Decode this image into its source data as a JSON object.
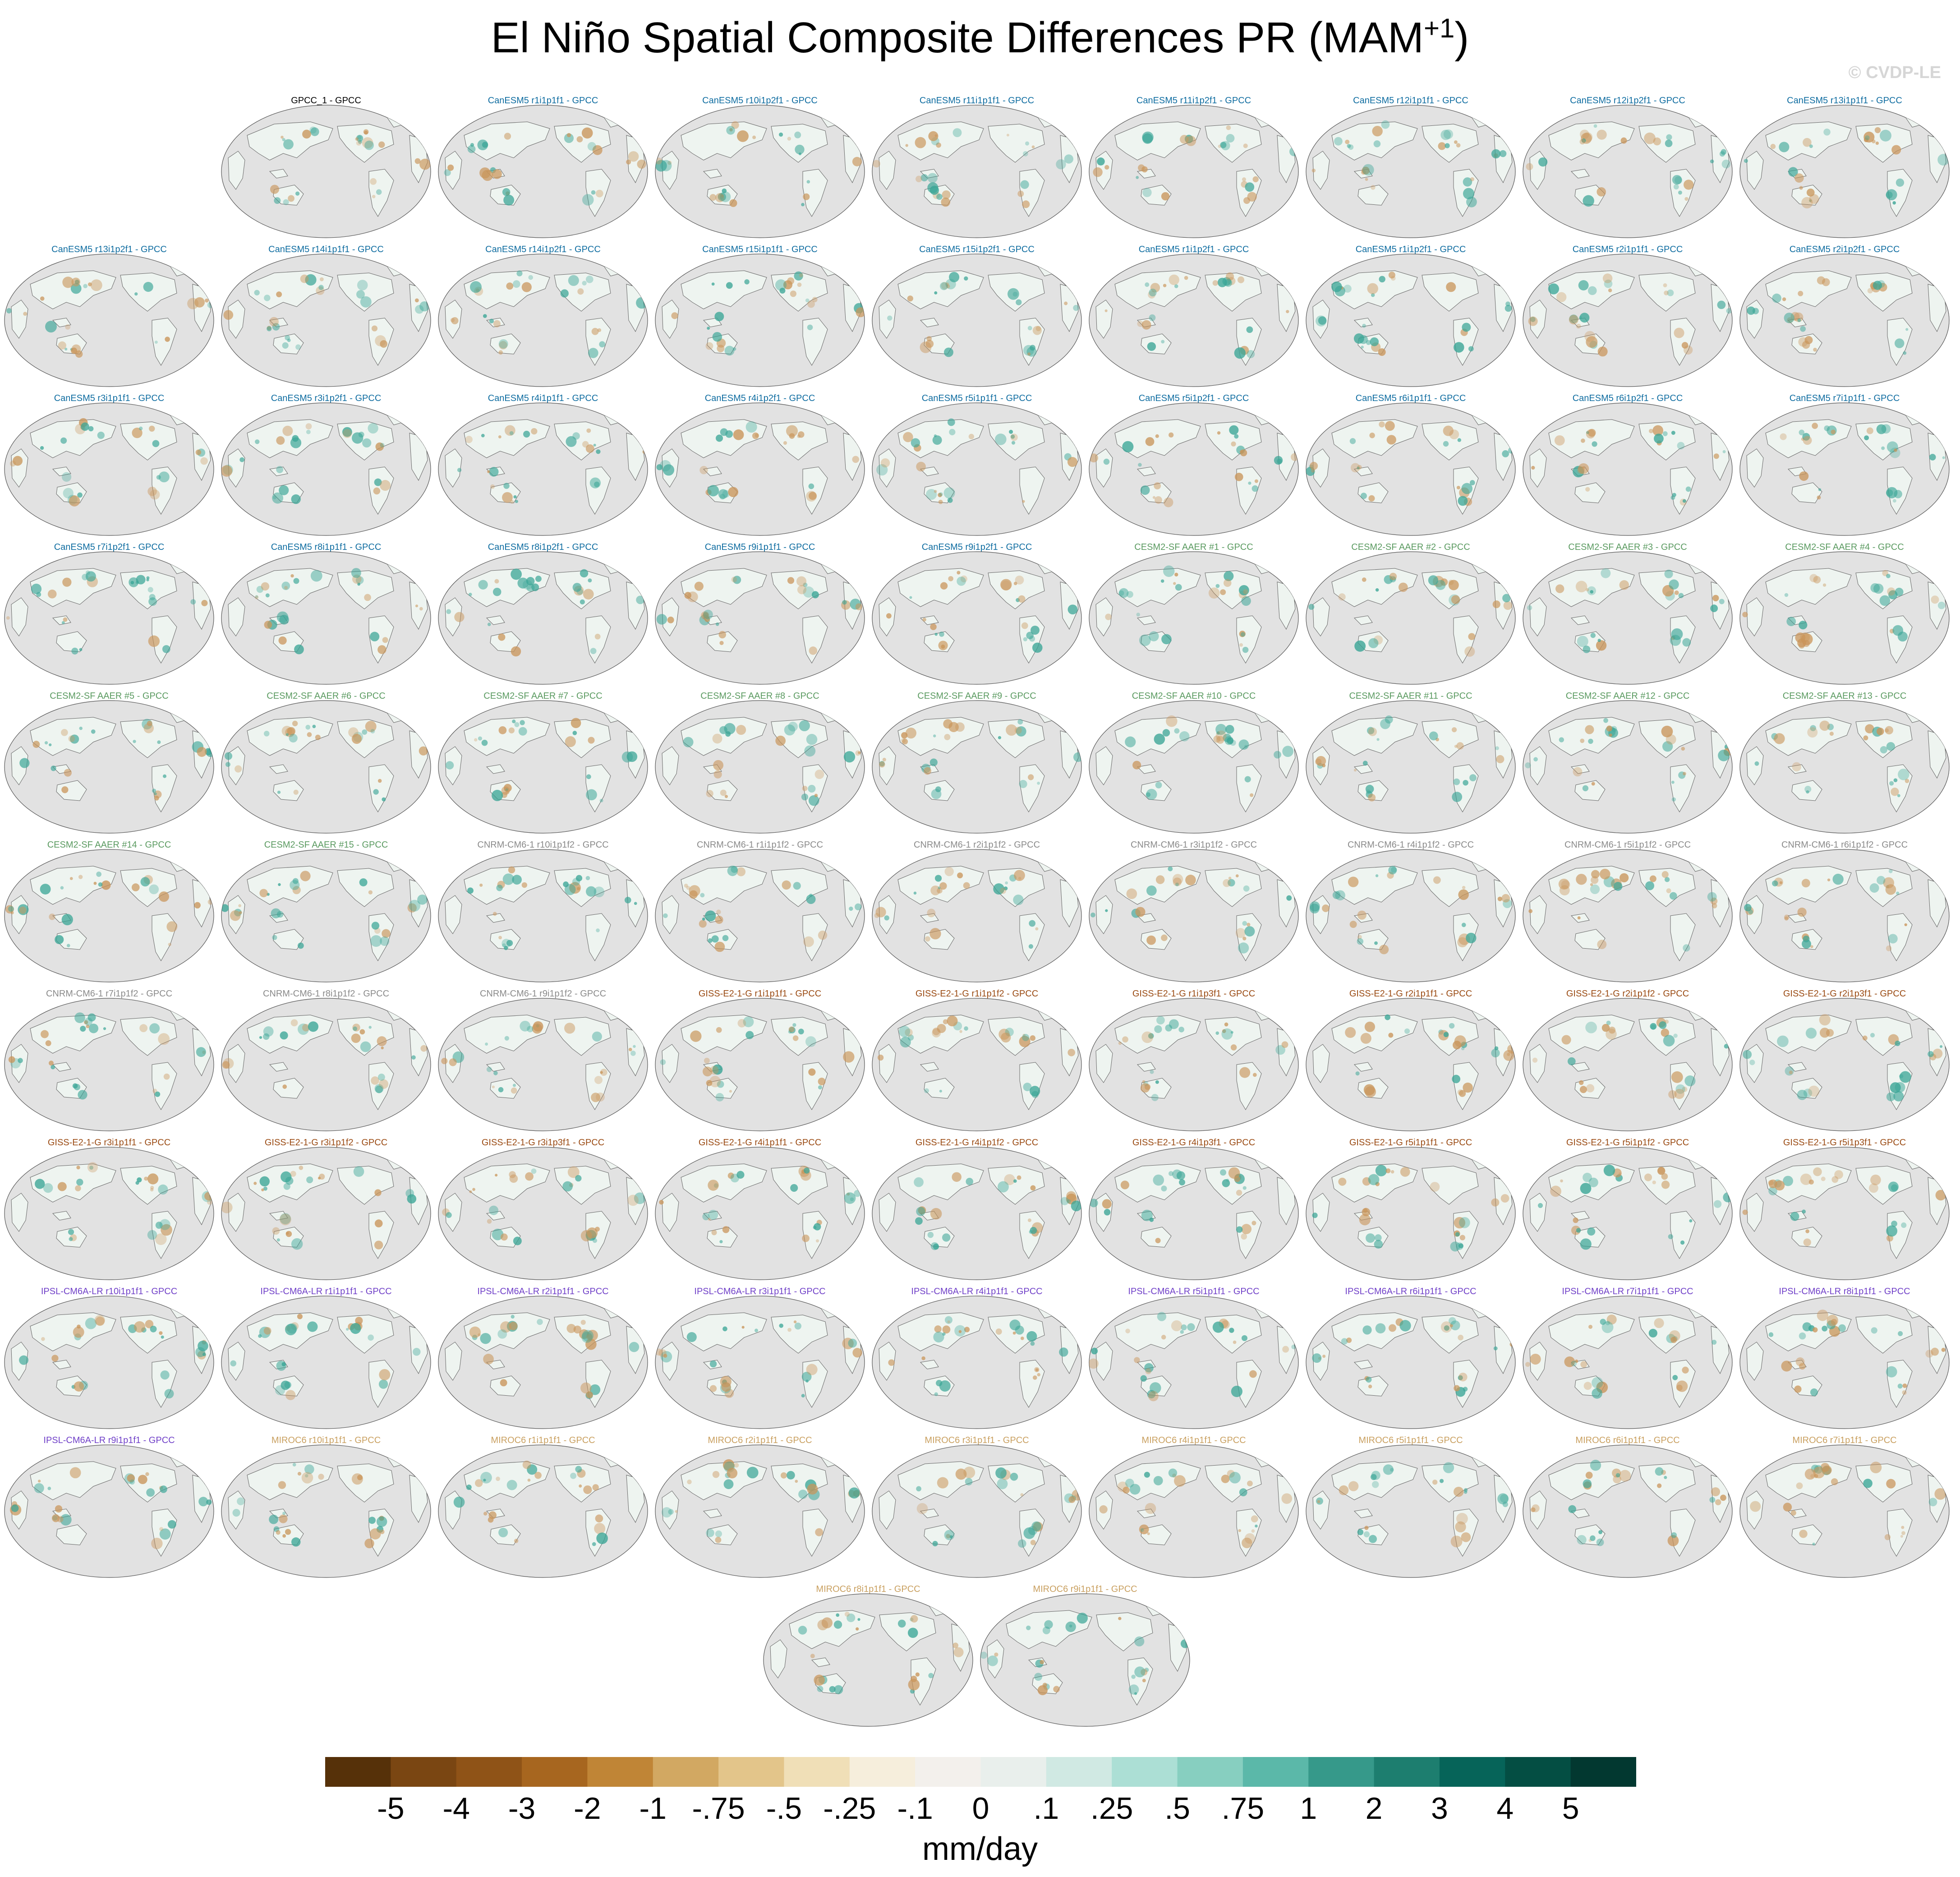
{
  "title": {
    "main": "El Niño Spatial Composite Differences PR (MAM",
    "sup": "+1",
    "close": ")"
  },
  "copyright": "© CVDP-LE",
  "group_colors": {
    "obs": "#000000",
    "CanESM5": "#0e6ca0",
    "CESM2-SF AAER": "#5a9a60",
    "CNRM-CM6-1": "#8a8a8a",
    "GISS-E2-1-G": "#9a4a12",
    "IPSL-CM6A-LR": "#7040c8",
    "MIROC6": "#c9a060"
  },
  "map_colors": {
    "ocean": "#e2e2e2",
    "land": "#eef4f0",
    "coast": "#666666",
    "dry": "#c9955a",
    "wet": "#3aa596"
  },
  "panels": [
    {
      "label": "GPCC_1 - GPCC",
      "group": "obs"
    },
    {
      "label": "CanESM5 r1i1p1f1 - GPCC",
      "group": "CanESM5"
    },
    {
      "label": "CanESM5 r10i1p2f1 - GPCC",
      "group": "CanESM5"
    },
    {
      "label": "CanESM5 r11i1p1f1 - GPCC",
      "group": "CanESM5"
    },
    {
      "label": "CanESM5 r11i1p2f1 - GPCC",
      "group": "CanESM5"
    },
    {
      "label": "CanESM5 r12i1p1f1 - GPCC",
      "group": "CanESM5"
    },
    {
      "label": "CanESM5 r12i1p2f1 - GPCC",
      "group": "CanESM5"
    },
    {
      "label": "CanESM5 r13i1p1f1 - GPCC",
      "group": "CanESM5"
    },
    {
      "label": "CanESM5 r13i1p2f1 - GPCC",
      "group": "CanESM5"
    },
    {
      "label": "CanESM5 r14i1p1f1 - GPCC",
      "group": "CanESM5"
    },
    {
      "label": "CanESM5 r14i1p2f1 - GPCC",
      "group": "CanESM5"
    },
    {
      "label": "CanESM5 r15i1p1f1 - GPCC",
      "group": "CanESM5"
    },
    {
      "label": "CanESM5 r15i1p2f1 - GPCC",
      "group": "CanESM5"
    },
    {
      "label": "CanESM5 r1i1p2f1 - GPCC",
      "group": "CanESM5"
    },
    {
      "label": "CanESM5 r1i1p2f1 - GPCC",
      "group": "CanESM5"
    },
    {
      "label": "CanESM5 r2i1p1f1 - GPCC",
      "group": "CanESM5"
    },
    {
      "label": "CanESM5 r2i1p2f1 - GPCC",
      "group": "CanESM5"
    },
    {
      "label": "CanESM5 r3i1p1f1 - GPCC",
      "group": "CanESM5"
    },
    {
      "label": "CanESM5 r3i1p2f1 - GPCC",
      "group": "CanESM5"
    },
    {
      "label": "CanESM5 r4i1p1f1 - GPCC",
      "group": "CanESM5"
    },
    {
      "label": "CanESM5 r4i1p2f1 - GPCC",
      "group": "CanESM5"
    },
    {
      "label": "CanESM5 r5i1p1f1 - GPCC",
      "group": "CanESM5"
    },
    {
      "label": "CanESM5 r5i1p2f1 - GPCC",
      "group": "CanESM5"
    },
    {
      "label": "CanESM5 r6i1p1f1 - GPCC",
      "group": "CanESM5"
    },
    {
      "label": "CanESM5 r6i1p2f1 - GPCC",
      "group": "CanESM5"
    },
    {
      "label": "CanESM5 r7i1p1f1 - GPCC",
      "group": "CanESM5"
    },
    {
      "label": "CanESM5 r7i1p2f1 - GPCC",
      "group": "CanESM5"
    },
    {
      "label": "CanESM5 r8i1p1f1 - GPCC",
      "group": "CanESM5"
    },
    {
      "label": "CanESM5 r8i1p2f1 - GPCC",
      "group": "CanESM5"
    },
    {
      "label": "CanESM5 r9i1p1f1 - GPCC",
      "group": "CanESM5"
    },
    {
      "label": "CanESM5 r9i1p2f1 - GPCC",
      "group": "CanESM5"
    },
    {
      "label": "CESM2-SF AAER #1 - GPCC",
      "group": "CESM2-SF AAER"
    },
    {
      "label": "CESM2-SF AAER #2 - GPCC",
      "group": "CESM2-SF AAER"
    },
    {
      "label": "CESM2-SF AAER #3 - GPCC",
      "group": "CESM2-SF AAER"
    },
    {
      "label": "CESM2-SF AAER #4 - GPCC",
      "group": "CESM2-SF AAER"
    },
    {
      "label": "CESM2-SF AAER #5 - GPCC",
      "group": "CESM2-SF AAER"
    },
    {
      "label": "CESM2-SF AAER #6 - GPCC",
      "group": "CESM2-SF AAER"
    },
    {
      "label": "CESM2-SF AAER #7 - GPCC",
      "group": "CESM2-SF AAER"
    },
    {
      "label": "CESM2-SF AAER #8 - GPCC",
      "group": "CESM2-SF AAER"
    },
    {
      "label": "CESM2-SF AAER #9 - GPCC",
      "group": "CESM2-SF AAER"
    },
    {
      "label": "CESM2-SF AAER #10 - GPCC",
      "group": "CESM2-SF AAER"
    },
    {
      "label": "CESM2-SF AAER #11 - GPCC",
      "group": "CESM2-SF AAER"
    },
    {
      "label": "CESM2-SF AAER #12 - GPCC",
      "group": "CESM2-SF AAER"
    },
    {
      "label": "CESM2-SF AAER #13 - GPCC",
      "group": "CESM2-SF AAER"
    },
    {
      "label": "CESM2-SF AAER #14 - GPCC",
      "group": "CESM2-SF AAER"
    },
    {
      "label": "CESM2-SF AAER #15 - GPCC",
      "group": "CESM2-SF AAER"
    },
    {
      "label": "CNRM-CM6-1 r10i1p1f2 - GPCC",
      "group": "CNRM-CM6-1"
    },
    {
      "label": "CNRM-CM6-1 r1i1p1f2 - GPCC",
      "group": "CNRM-CM6-1"
    },
    {
      "label": "CNRM-CM6-1 r2i1p1f2 - GPCC",
      "group": "CNRM-CM6-1"
    },
    {
      "label": "CNRM-CM6-1 r3i1p1f2 - GPCC",
      "group": "CNRM-CM6-1"
    },
    {
      "label": "CNRM-CM6-1 r4i1p1f2 - GPCC",
      "group": "CNRM-CM6-1"
    },
    {
      "label": "CNRM-CM6-1 r5i1p1f2 - GPCC",
      "group": "CNRM-CM6-1"
    },
    {
      "label": "CNRM-CM6-1 r6i1p1f2 - GPCC",
      "group": "CNRM-CM6-1"
    },
    {
      "label": "CNRM-CM6-1 r7i1p1f2 - GPCC",
      "group": "CNRM-CM6-1"
    },
    {
      "label": "CNRM-CM6-1 r8i1p1f2 - GPCC",
      "group": "CNRM-CM6-1"
    },
    {
      "label": "CNRM-CM6-1 r9i1p1f2 - GPCC",
      "group": "CNRM-CM6-1"
    },
    {
      "label": "GISS-E2-1-G r1i1p1f1 - GPCC",
      "group": "GISS-E2-1-G"
    },
    {
      "label": "GISS-E2-1-G r1i1p1f2 - GPCC",
      "group": "GISS-E2-1-G"
    },
    {
      "label": "GISS-E2-1-G r1i1p3f1 - GPCC",
      "group": "GISS-E2-1-G"
    },
    {
      "label": "GISS-E2-1-G r2i1p1f1 - GPCC",
      "group": "GISS-E2-1-G"
    },
    {
      "label": "GISS-E2-1-G r2i1p1f2 - GPCC",
      "group": "GISS-E2-1-G"
    },
    {
      "label": "GISS-E2-1-G r2i1p3f1 - GPCC",
      "group": "GISS-E2-1-G"
    },
    {
      "label": "GISS-E2-1-G r3i1p1f1 - GPCC",
      "group": "GISS-E2-1-G"
    },
    {
      "label": "GISS-E2-1-G r3i1p1f2 - GPCC",
      "group": "GISS-E2-1-G"
    },
    {
      "label": "GISS-E2-1-G r3i1p3f1 - GPCC",
      "group": "GISS-E2-1-G"
    },
    {
      "label": "GISS-E2-1-G r4i1p1f1 - GPCC",
      "group": "GISS-E2-1-G"
    },
    {
      "label": "GISS-E2-1-G r4i1p1f2 - GPCC",
      "group": "GISS-E2-1-G"
    },
    {
      "label": "GISS-E2-1-G r4i1p3f1 - GPCC",
      "group": "GISS-E2-1-G"
    },
    {
      "label": "GISS-E2-1-G r5i1p1f1 - GPCC",
      "group": "GISS-E2-1-G"
    },
    {
      "label": "GISS-E2-1-G r5i1p1f2 - GPCC",
      "group": "GISS-E2-1-G"
    },
    {
      "label": "GISS-E2-1-G r5i1p3f1 - GPCC",
      "group": "GISS-E2-1-G"
    },
    {
      "label": "IPSL-CM6A-LR r10i1p1f1 - GPCC",
      "group": "IPSL-CM6A-LR"
    },
    {
      "label": "IPSL-CM6A-LR r1i1p1f1 - GPCC",
      "group": "IPSL-CM6A-LR"
    },
    {
      "label": "IPSL-CM6A-LR r2i1p1f1 - GPCC",
      "group": "IPSL-CM6A-LR"
    },
    {
      "label": "IPSL-CM6A-LR r3i1p1f1 - GPCC",
      "group": "IPSL-CM6A-LR"
    },
    {
      "label": "IPSL-CM6A-LR r4i1p1f1 - GPCC",
      "group": "IPSL-CM6A-LR"
    },
    {
      "label": "IPSL-CM6A-LR r5i1p1f1 - GPCC",
      "group": "IPSL-CM6A-LR"
    },
    {
      "label": "IPSL-CM6A-LR r6i1p1f1 - GPCC",
      "group": "IPSL-CM6A-LR"
    },
    {
      "label": "IPSL-CM6A-LR r7i1p1f1 - GPCC",
      "group": "IPSL-CM6A-LR"
    },
    {
      "label": "IPSL-CM6A-LR r8i1p1f1 - GPCC",
      "group": "IPSL-CM6A-LR"
    },
    {
      "label": "IPSL-CM6A-LR r9i1p1f1 - GPCC",
      "group": "IPSL-CM6A-LR"
    },
    {
      "label": "MIROC6 r10i1p1f1 - GPCC",
      "group": "MIROC6"
    },
    {
      "label": "MIROC6 r1i1p1f1 - GPCC",
      "group": "MIROC6"
    },
    {
      "label": "MIROC6 r2i1p1f1 - GPCC",
      "group": "MIROC6"
    },
    {
      "label": "MIROC6 r3i1p1f1 - GPCC",
      "group": "MIROC6"
    },
    {
      "label": "MIROC6 r4i1p1f1 - GPCC",
      "group": "MIROC6"
    },
    {
      "label": "MIROC6 r5i1p1f1 - GPCC",
      "group": "MIROC6"
    },
    {
      "label": "MIROC6 r6i1p1f1 - GPCC",
      "group": "MIROC6"
    },
    {
      "label": "MIROC6 r7i1p1f1 - GPCC",
      "group": "MIROC6"
    },
    {
      "label": "MIROC6 r8i1p1f1 - GPCC",
      "group": "MIROC6"
    },
    {
      "label": "MIROC6 r9i1p1f1 - GPCC",
      "group": "MIROC6"
    }
  ],
  "colorbar": {
    "units": "mm/day",
    "tick_labels": [
      "-5",
      "-4",
      "-3",
      "-2",
      "-1",
      "-.75",
      "-.5",
      "-.25",
      "-.1",
      "0",
      ".1",
      ".25",
      ".5",
      ".75",
      "1",
      "2",
      "3",
      "4",
      "5"
    ],
    "colors": [
      "#563109",
      "#7a4612",
      "#8f5317",
      "#a7661f",
      "#c08536",
      "#d2a862",
      "#e3c58a",
      "#f0dfb7",
      "#f6eedc",
      "#f3f0ec",
      "#e9efec",
      "#d0e9e3",
      "#acdfd5",
      "#87cfc0",
      "#5bb8a9",
      "#36998a",
      "#1d7e6f",
      "#066459",
      "#044e43",
      "#023830"
    ]
  }
}
